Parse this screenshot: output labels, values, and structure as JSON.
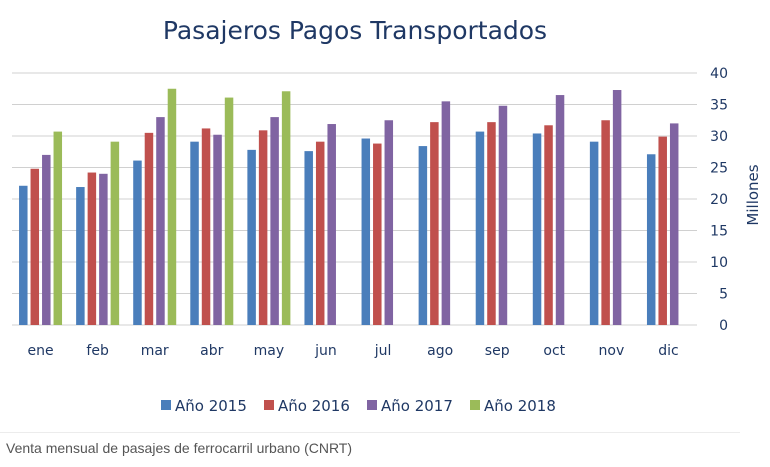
{
  "chart_data": {
    "type": "bar",
    "title": "Pasajeros Pagos Transportados",
    "ylabel": "Millones",
    "ylim": [
      0,
      40
    ],
    "yticks": [
      "0",
      "5",
      "10",
      "15",
      "20",
      "25",
      "30",
      "35",
      "40"
    ],
    "grid": true,
    "legend_position": "bottom",
    "categories": [
      "ene",
      "feb",
      "mar",
      "abr",
      "may",
      "jun",
      "jul",
      "ago",
      "sep",
      "oct",
      "nov",
      "dic"
    ],
    "series": [
      {
        "name": "Año 2015",
        "color": "#4a7ebb",
        "values": [
          22.1,
          21.9,
          26.1,
          29.1,
          27.8,
          27.6,
          29.6,
          28.4,
          30.7,
          30.4,
          29.1,
          27.1
        ]
      },
      {
        "name": "Año 2016",
        "color": "#c0504d",
        "values": [
          24.8,
          24.2,
          30.5,
          31.2,
          30.9,
          29.1,
          28.8,
          32.2,
          32.2,
          31.7,
          32.5,
          29.9
        ]
      },
      {
        "name": "Año 2017",
        "color": "#8064a2",
        "values": [
          27.0,
          24.0,
          33.0,
          30.2,
          33.0,
          31.9,
          32.5,
          35.5,
          34.8,
          36.5,
          37.3,
          32.0
        ]
      },
      {
        "name": "Año 2018",
        "color": "#9bbb59",
        "values": [
          30.7,
          29.1,
          37.5,
          36.1,
          37.1,
          null,
          null,
          null,
          null,
          null,
          null,
          null
        ]
      }
    ]
  },
  "caption": "Venta mensual de pasajes de ferrocarril urbano (CNRT)"
}
